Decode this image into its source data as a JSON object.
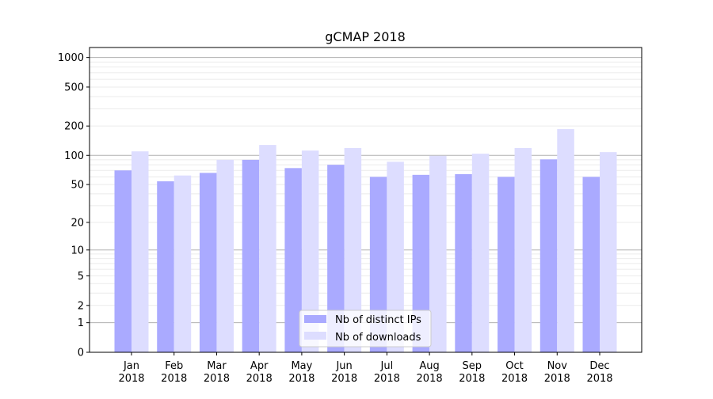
{
  "chart_data": {
    "type": "bar",
    "title": "gCMAP 2018",
    "xlabel": "",
    "ylabel": "",
    "yscale": "log(1+y)",
    "ylim": [
      0,
      1300
    ],
    "yticks": [
      0,
      1,
      2,
      5,
      10,
      20,
      50,
      100,
      200,
      500,
      1000
    ],
    "categories": [
      "Jan\n2018",
      "Feb\n2018",
      "Mar\n2018",
      "Apr\n2018",
      "May\n2018",
      "Jun\n2018",
      "Jul\n2018",
      "Aug\n2018",
      "Sep\n2018",
      "Oct\n2018",
      "Nov\n2018",
      "Dec\n2018"
    ],
    "series": [
      {
        "name": "Nb of distinct IPs",
        "color": "#aaaaff",
        "values": [
          70,
          54,
          66,
          90,
          74,
          80,
          60,
          63,
          64,
          60,
          91,
          60
        ]
      },
      {
        "name": "Nb of downloads",
        "color": "#ddddff",
        "values": [
          110,
          62,
          90,
          128,
          112,
          119,
          86,
          99,
          104,
          119,
          186,
          108
        ]
      }
    ],
    "grid": true,
    "legend": "lower-center"
  }
}
